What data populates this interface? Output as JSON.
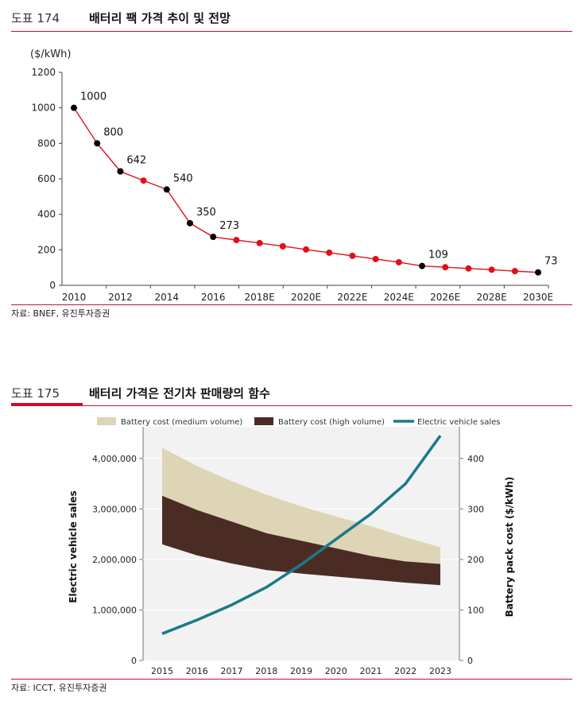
{
  "fig174": {
    "number": "도표 174",
    "title": "배터리 팩 가격 추이 및 전망",
    "source": "자료: BNEF, 유진투자증권",
    "chart_data": {
      "type": "line",
      "ylabel": "($/kWh)",
      "ylim": [
        0,
        1200
      ],
      "yticks": [
        0,
        200,
        400,
        600,
        800,
        1000,
        1200
      ],
      "x": [
        2010,
        2011,
        2012,
        2013,
        2014,
        2015,
        2016,
        2017,
        2018,
        2019,
        2020,
        2021,
        2022,
        2023,
        2024,
        2025,
        2026,
        2027,
        2028,
        2029,
        2030
      ],
      "xtick_labels": [
        "2010",
        "2012",
        "2014",
        "2016",
        "2018E",
        "2020E",
        "2022E",
        "2024E",
        "2026E",
        "2028E",
        "2030E"
      ],
      "values": [
        1000,
        800,
        642,
        590,
        540,
        350,
        273,
        255,
        238,
        220,
        202,
        184,
        166,
        148,
        130,
        109,
        102,
        95,
        88,
        80,
        73
      ],
      "labeled_points": [
        {
          "x": 2010,
          "label": "1000"
        },
        {
          "x": 2011,
          "label": "800"
        },
        {
          "x": 2012,
          "label": "642"
        },
        {
          "x": 2014,
          "label": "540"
        },
        {
          "x": 2015,
          "label": "350"
        },
        {
          "x": 2016,
          "label": "273"
        },
        {
          "x": 2025,
          "label": "109"
        },
        {
          "x": 2030,
          "label": "73"
        }
      ],
      "line_color": "#e0101a",
      "marker_color": "#e0101a",
      "labeled_marker_color": "#000000"
    }
  },
  "fig175": {
    "number": "도표 175",
    "title": "배터리 가격은 전기차 판매량의 함수",
    "source": "자료: ICCT, 유진투자증권",
    "chart_data": {
      "type": "area",
      "categories": [
        "2015",
        "2016",
        "2017",
        "2018",
        "2019",
        "2020",
        "2021",
        "2022",
        "2023"
      ],
      "ylabel_left": "Electric vehicle sales",
      "ylabel_right": "Battery pack cost ($/kWh)",
      "ylim_left": [
        0,
        4500000
      ],
      "yticks_left": [
        "0",
        "1,000,000",
        "2,000,000",
        "3,000,000",
        "4,000,000"
      ],
      "ylim_right": [
        0,
        450
      ],
      "yticks_right": [
        "0",
        "100",
        "200",
        "300",
        "400"
      ],
      "legend": [
        "Battery cost (medium volume)",
        "Battery cost (high volume)",
        "Electric vehicle sales"
      ],
      "legend_position": "top",
      "series": [
        {
          "name": "Battery cost (medium volume)",
          "axis": "right",
          "color": "#ddd5b5",
          "upper": [
            421,
            385,
            355,
            328,
            305,
            285,
            266,
            244,
            224
          ],
          "lower": [
            326,
            298,
            275,
            252,
            237,
            222,
            207,
            196,
            191
          ]
        },
        {
          "name": "Battery cost (high volume)",
          "axis": "right",
          "color": "#4b2c25",
          "upper": [
            326,
            298,
            275,
            252,
            237,
            222,
            207,
            196,
            191
          ],
          "lower": [
            230,
            208,
            192,
            179,
            172,
            166,
            160,
            154,
            149
          ]
        },
        {
          "name": "Electric vehicle sales",
          "axis": "left",
          "color": "#1a7a8a",
          "values": [
            530000,
            800000,
            1100000,
            1450000,
            1900000,
            2400000,
            2900000,
            3500000,
            4450000
          ]
        }
      ]
    }
  }
}
